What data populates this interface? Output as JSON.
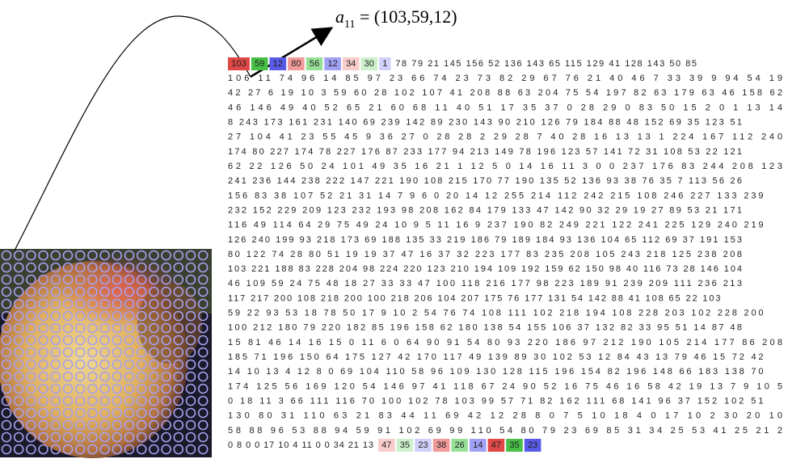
{
  "label": {
    "var": "a",
    "sub": "11",
    "rest": " = (103,59,12)"
  },
  "matrix": {
    "first_row_colored": [
      "103",
      "59",
      "12",
      "80",
      "56",
      "12",
      "34",
      "30",
      "1"
    ],
    "first_row_rest": "78 79 21 145 156 52 136 143 65 115 129 41 128 143 50 85",
    "rows": [
      "106 11 74 96 14 85 97 23 66 74 23 73 82 29 67 76 21 40 46 7 33 39 9 94 54 19",
      "42 27 6 19 10 3 59 60 28 102 107 41 208 88 63 204 75 54 197 82 63 179 63 46 158 62",
      "46 146 49 40 52 65 21 60 68 11 40 51 17 35 37 0 28 29 0 83 50 15 2 0 1 13 14",
      "8 243 173 161 231 140 69 239 142 89 230 143 90 210 126 79 184 88 48 152 69 35 123 51",
      "27 104 41 23 55 45 9 36 27 0 28 28 2 29 28 7 40 28 16 13 13 1 224 167 112 240",
      "174 80 227 174 78 227 176 87 233 177 94 213 149 78 196 123 57 141 72 31 108 53 22 121",
      "62 22 126 50 24 101 49 35 16 21 1 12 5 0 14 16 11 3 0 0 237 176 83 244 208 123",
      "241 236 144 238 222 147 221 190 108 215 170 77 190 135 52 136 93 38 76 35 7 113 56 26",
      "156 83 38 107 52 21 31 14 7 9 6 0 20 14 12 255 214 112 242 215 108 246 227 133 239",
      "232 152 229 209 123 232 193 98 208 162 84 179 133 47 142 90 32 29 19 27 89 53 21 171",
      "116 49 114 64 29 75 49 24 10 9 5 11 16 9 237 190 82 249 221 122 241 225 129 240 219",
      "126 240 199 93 218 173 69 188 135 33 219 186 79 189 184 93 136 104 65 112 69 37 191 153",
      "80 122 74 28 80 51 19 19 37 47 16 37 32 223 177 83 235 208 105 243 218 125 238 208",
      "103 221 188 83 228 204 98 224 220 123 210 194 109 192 159 62 150 98 40 116 73 28 146 104",
      "46 109 59 24 75 48 18 27 33 33 47 100 118 216 177 98 223 189 91 239 209 111 236 213",
      "117 217 200 108 218 200 100 218 206 104 207 175 76 177 131 54 142 88 41 108 65 22 103",
      "59 22 93 53 18 78 50 17 9 10 2 54 76 74 108 111 102 218 194 108 228 203 102 228 200",
      "100 212 180 79 220 182 85 196 158 62 180 138 54 155 106 37 132 82 33 95 51 14 87 48",
      "15 81 46 14 16 15 0 11 6 0 64 90 91 54 80 93 220 186 97 212 190 105 214 177 86 208",
      "185 71 196 150 64 175 127 42 170 117 49 139 89 30 102 53 12 84 43 13 79 46 15 72 42",
      "14 10 13 4 12 8 0 69 104 110 58 96 109 130 128 115 196 154 82 196 148 66 183 138 70",
      "174 125 56 169 120 54 146 97 41 118 67 24 90 52 16 75 46 16 58 42 19 13 7 9 10 5",
      "0 18 11 3 66 111 116 70 100 102 78 103 99 57 71 82 162 111 68 141 96 37 152 102 51",
      "130 80 31 110 63 21 83 44 11 69 42 12 28 8 0 7 5 10 18 4 0 17 10 2 30 20 10",
      "58 88 96 53 88 94 59 91 102 69 99 110 54 80 79 23 69 85 31 34 25 53 41 25 21 2"
    ],
    "last_row_start": "0 8 0 0 17 10 4 11 0 0 34 21 13",
    "last_row_colored": [
      "47",
      "35",
      "23",
      "38",
      "26",
      "14",
      "47",
      "35",
      "23"
    ]
  }
}
